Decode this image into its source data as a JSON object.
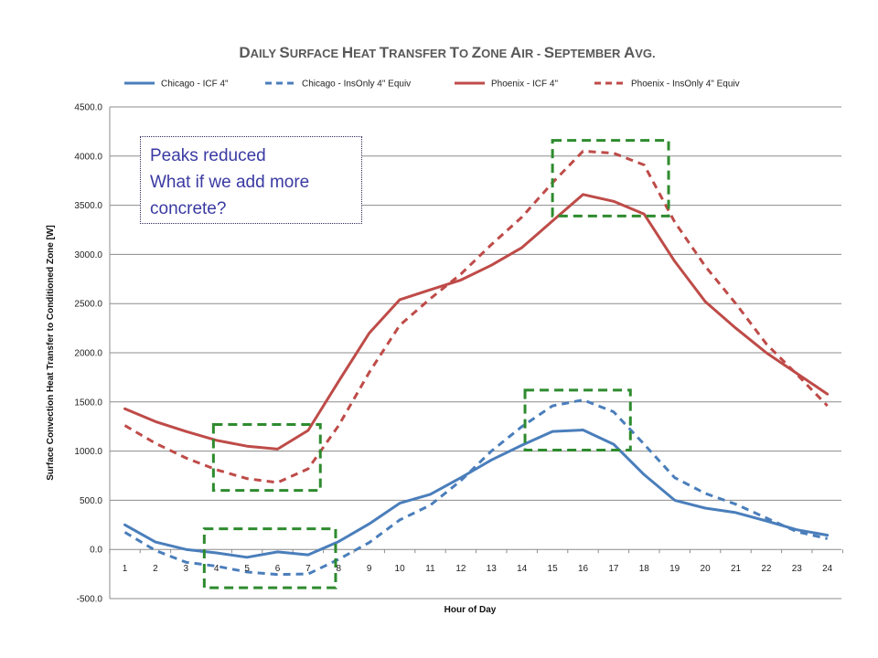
{
  "chart_data": {
    "type": "line",
    "title_parts": [
      {
        "text": "D",
        "big": true
      },
      {
        "text": "AILY ",
        "big": false
      },
      {
        "text": "S",
        "big": true
      },
      {
        "text": "URFACE ",
        "big": false
      },
      {
        "text": "H",
        "big": true
      },
      {
        "text": "EAT ",
        "big": false
      },
      {
        "text": "T",
        "big": true
      },
      {
        "text": "RANSFER ",
        "big": false
      },
      {
        "text": "T",
        "big": true
      },
      {
        "text": "O ",
        "big": false
      },
      {
        "text": "Z",
        "big": true
      },
      {
        "text": "ONE ",
        "big": false
      },
      {
        "text": "A",
        "big": true
      },
      {
        "text": "IR - ",
        "big": false
      },
      {
        "text": "S",
        "big": true
      },
      {
        "text": "EPTEMBER ",
        "big": false
      },
      {
        "text": "A",
        "big": true
      },
      {
        "text": "VG.",
        "big": false
      }
    ],
    "xlabel": "Hour of Day",
    "ylabel": "Surface Convection Heat Transfer to Conditioned Zone [W]",
    "x": [
      1,
      2,
      3,
      4,
      5,
      6,
      7,
      8,
      9,
      10,
      11,
      12,
      13,
      14,
      15,
      16,
      17,
      18,
      19,
      20,
      21,
      22,
      23,
      24
    ],
    "ylim": [
      -500,
      4500
    ],
    "yticks": [
      -500,
      0,
      500,
      1000,
      1500,
      2000,
      2500,
      3000,
      3500,
      4000,
      4500
    ],
    "ytick_labels": [
      "-500.0",
      "0.0",
      "500.0",
      "1000.0",
      "1500.0",
      "2000.0",
      "2500.0",
      "3000.0",
      "3500.0",
      "4000.0",
      "4500.0"
    ],
    "grid": "horizontal",
    "legend_position": "top",
    "series": [
      {
        "name": "Chicago - ICF 4\"",
        "color": "#4a7ebb",
        "dash": "solid",
        "values": [
          250,
          75,
          0,
          -35,
          -80,
          -25,
          -55,
          80,
          260,
          470,
          560,
          730,
          910,
          1060,
          1200,
          1215,
          1070,
          760,
          500,
          420,
          375,
          290,
          200,
          145
        ]
      },
      {
        "name": "Chicago - InsOnly 4\" Equiv",
        "color": "#4a7ebb",
        "dash": "dashed",
        "values": [
          175,
          -10,
          -130,
          -170,
          -230,
          -255,
          -250,
          -100,
          70,
          300,
          450,
          700,
          1000,
          1250,
          1460,
          1520,
          1400,
          1070,
          730,
          570,
          460,
          320,
          180,
          110
        ]
      },
      {
        "name": "Phoenix - ICF 4\"",
        "color": "#be4b48",
        "dash": "solid",
        "values": [
          1430,
          1300,
          1200,
          1110,
          1050,
          1020,
          1210,
          1710,
          2200,
          2540,
          2640,
          2740,
          2890,
          3070,
          3340,
          3610,
          3540,
          3410,
          2930,
          2520,
          2250,
          2000,
          1790,
          1580
        ]
      },
      {
        "name": "Phoenix - InsOnly 4\" Equiv",
        "color": "#be4b48",
        "dash": "dashed",
        "values": [
          1260,
          1080,
          930,
          810,
          720,
          680,
          820,
          1260,
          1800,
          2280,
          2550,
          2800,
          3100,
          3380,
          3730,
          4050,
          4030,
          3910,
          3330,
          2880,
          2500,
          2090,
          1780,
          1460
        ]
      }
    ],
    "highlight_boxes": [
      {
        "x_range": [
          15.0,
          18.8
        ],
        "y_range": [
          3390,
          4160
        ]
      },
      {
        "x_range": [
          3.9,
          7.4
        ],
        "y_range": [
          600,
          1270
        ]
      },
      {
        "x_range": [
          14.1,
          17.55
        ],
        "y_range": [
          1010,
          1620
        ]
      },
      {
        "x_range": [
          3.6,
          7.9
        ],
        "y_range": [
          -390,
          210
        ]
      }
    ]
  },
  "annotation": {
    "lines": [
      "Peaks reduced",
      "What if we add more",
      "concrete?"
    ]
  }
}
